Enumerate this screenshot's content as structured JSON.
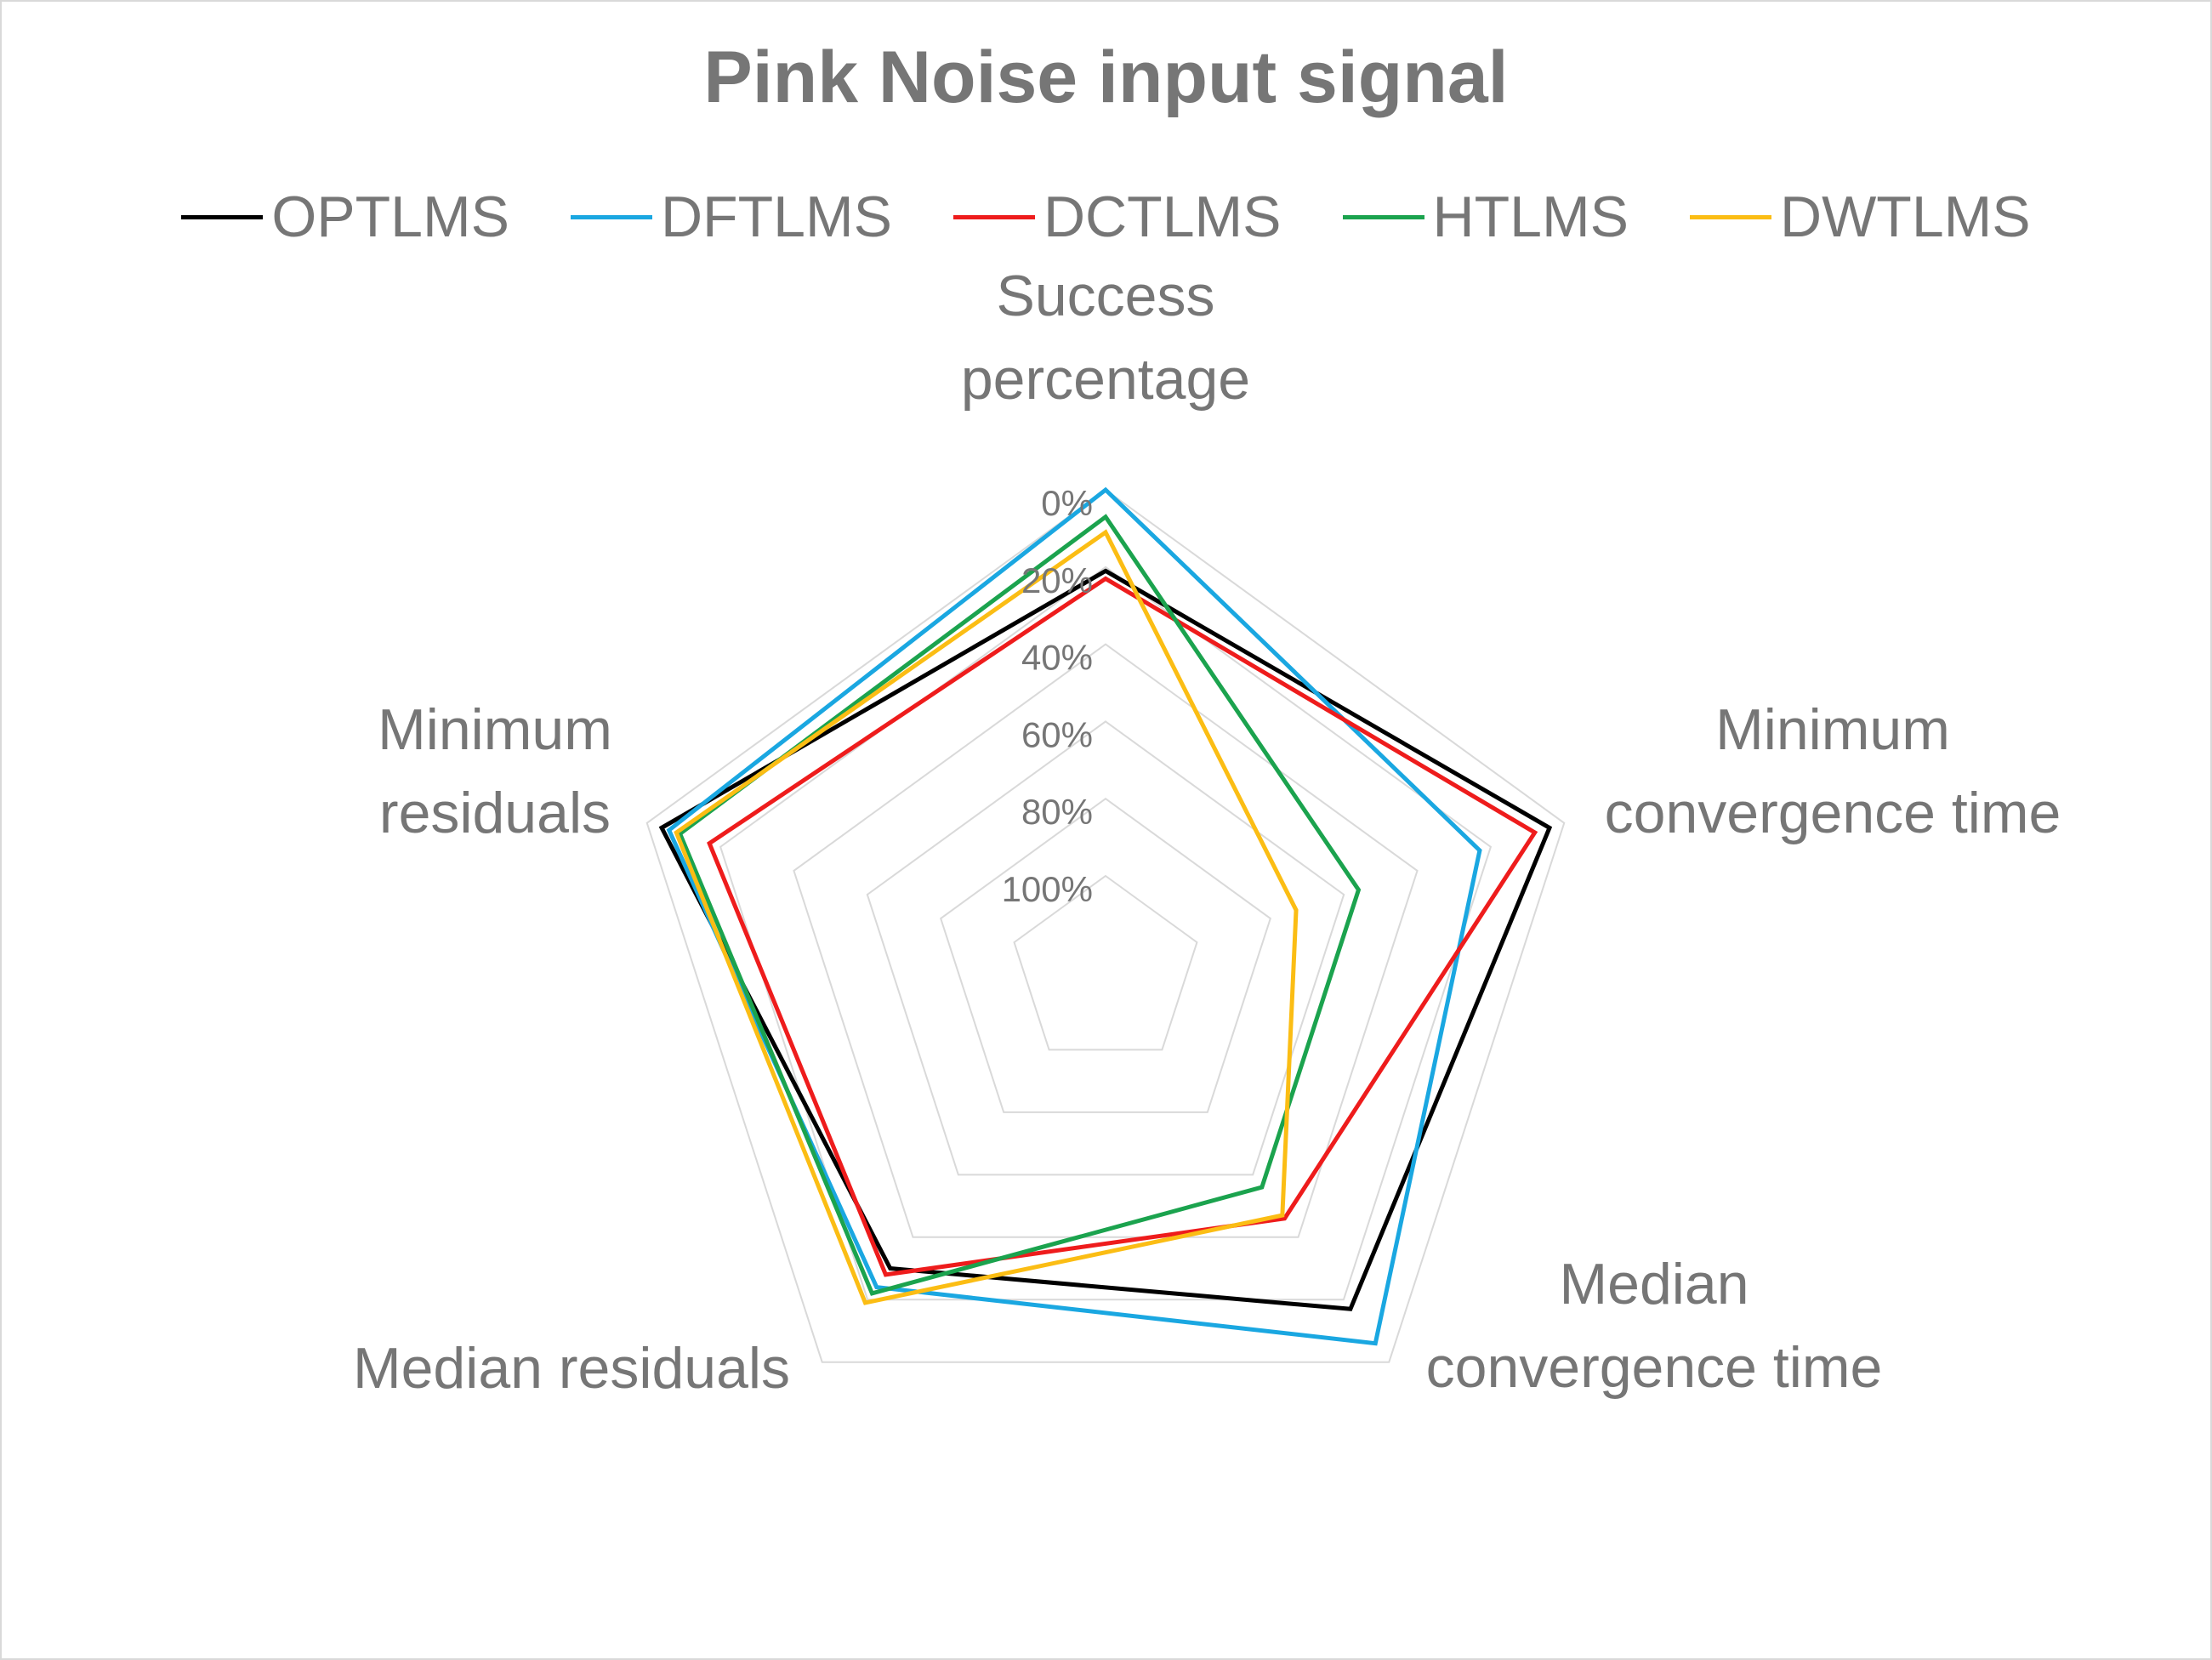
{
  "chart_data": {
    "type": "radar",
    "title": "Pink Noise input signal",
    "axes": [
      {
        "name": "Success percentage",
        "lines": [
          "Success",
          "percentage"
        ]
      },
      {
        "name": "Minimum convergence time",
        "lines": [
          "Minimum",
          "convergence time"
        ]
      },
      {
        "name": "Median convergence time",
        "lines": [
          "Median",
          "convergence time"
        ]
      },
      {
        "name": "Median residuals",
        "lines": [
          "Median residuals"
        ]
      },
      {
        "name": "Minimum residuals",
        "lines": [
          "Minimum",
          "residuals"
        ]
      }
    ],
    "radial_axis": {
      "reversed": true,
      "range": [
        0,
        100
      ],
      "ticks": [
        0,
        20,
        40,
        60,
        80,
        100
      ],
      "tick_labels": [
        "0%",
        "20%",
        "40%",
        "60%",
        "80%",
        "100%"
      ]
    },
    "grid": true,
    "legend_position": "top",
    "series": [
      {
        "name": "OPTLMS",
        "color": "#000000",
        "values": [
          21,
          4,
          17,
          30,
          4
        ]
      },
      {
        "name": "DFTLMS",
        "color": "#1aa7e1",
        "values": [
          0,
          23,
          6,
          24,
          6
        ]
      },
      {
        "name": "DCTLMS",
        "color": "#ee1c1c",
        "values": [
          23,
          8,
          46,
          28,
          17
        ]
      },
      {
        "name": "HTLMS",
        "color": "#1ba34e",
        "values": [
          7,
          56,
          56,
          22,
          9
        ]
      },
      {
        "name": "DWTLMS",
        "color": "#fbbd14",
        "values": [
          11,
          73,
          47,
          19,
          8
        ]
      }
    ]
  }
}
